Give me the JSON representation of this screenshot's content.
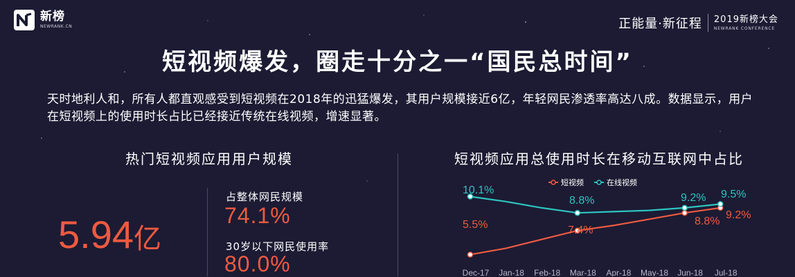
{
  "header": {
    "logo_name": "新榜",
    "logo_sub": "NEWRANK.CN",
    "conf_slogan": "正能量·新征程",
    "conf_name": "2019新榜大会",
    "conf_sub": "NEWRANK CONFERENCE"
  },
  "title": "短视频爆发，圈走十分之一“国民总时间”",
  "intro": "天时地利人和，所有人都直观感受到短视频在2018年的迅猛爆发，其用户规模接近6亿，年轻网民渗透率高达八成。数据显示，用户在短视频上的使用时长占比已经接近传统在线视频，增速显著。",
  "left_panel": {
    "heading": "热门短视频应用用户规模",
    "big_number": "5.94",
    "big_unit": "亿",
    "stats": [
      {
        "label": "占整体网民规模",
        "value": "74.1%"
      },
      {
        "label": "30岁以下网民使用率",
        "value": "80.0%"
      }
    ]
  },
  "colors": {
    "background": "#1c1b33",
    "accent": "#ef5a40",
    "teal": "#2ec4c0"
  },
  "chart_data": {
    "type": "line",
    "title": "短视频应用总使用时长在移动互联网中占比",
    "categories": [
      "Dec-17",
      "Jan-18",
      "Feb-18",
      "Mar-18",
      "Apr-18",
      "May-18",
      "Jun-18",
      "Jul-18"
    ],
    "series": [
      {
        "name": "短视频",
        "color": "#ef5a40",
        "values": [
          5.5,
          6.0,
          6.7,
          7.4,
          7.8,
          8.3,
          8.8,
          9.2
        ],
        "labels": {
          "0": "5.5%",
          "3": "7.4%",
          "6": "8.8%",
          "7": "9.2%"
        }
      },
      {
        "name": "在线视频",
        "color": "#2ec4c0",
        "values": [
          10.1,
          9.7,
          9.2,
          8.8,
          8.9,
          9.0,
          9.2,
          9.5
        ],
        "labels": {
          "0": "10.1%",
          "3": "8.8%",
          "6": "9.2%",
          "7": "9.5%"
        }
      }
    ],
    "markers_at": [
      0,
      3,
      6,
      7
    ],
    "legend_position": "top",
    "ylim": [
      4,
      11
    ],
    "xlabel": "",
    "ylabel": ""
  }
}
